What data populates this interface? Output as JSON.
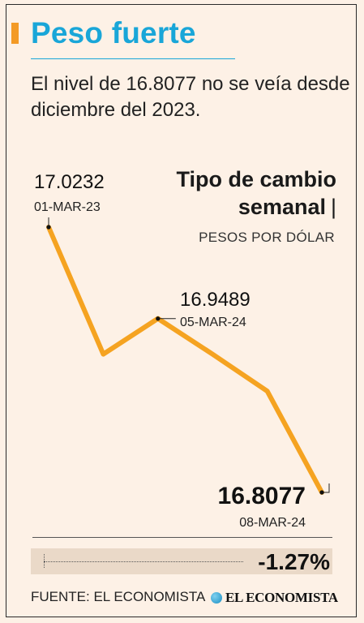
{
  "header": {
    "title": "Peso fuerte",
    "subtitle": "El nivel de 16.8077 no se veía desde diciembre del 2023."
  },
  "colors": {
    "accent": "#f39a26",
    "title": "#19a6d8",
    "line": "#f5a321",
    "background": "#fdf1e6"
  },
  "chart_data": {
    "type": "line",
    "title": "Tipo de cambio semanal",
    "subtitle": "PESOS POR DÓLAR",
    "xlabel": "",
    "ylabel": "",
    "grid": false,
    "legend": "none",
    "series": [
      {
        "values": [
          17.0232,
          16.92,
          16.9489,
          16.92,
          16.89,
          16.8077
        ]
      }
    ],
    "ylim": [
      16.78,
      17.04
    ],
    "annotations": [
      {
        "index": 0,
        "value": "17.0232",
        "date": "01-MAR-23",
        "emphasis": false
      },
      {
        "index": 2,
        "value": "16.9489",
        "date": "05-MAR-24",
        "emphasis": false
      },
      {
        "index": 5,
        "value": "16.8077",
        "date": "08-MAR-24",
        "emphasis": true
      }
    ]
  },
  "summary": {
    "change": "-1.27%"
  },
  "footer": {
    "source": "FUENTE: EL ECONOMISTA",
    "logo_text": "EL ECONOMISTA"
  }
}
